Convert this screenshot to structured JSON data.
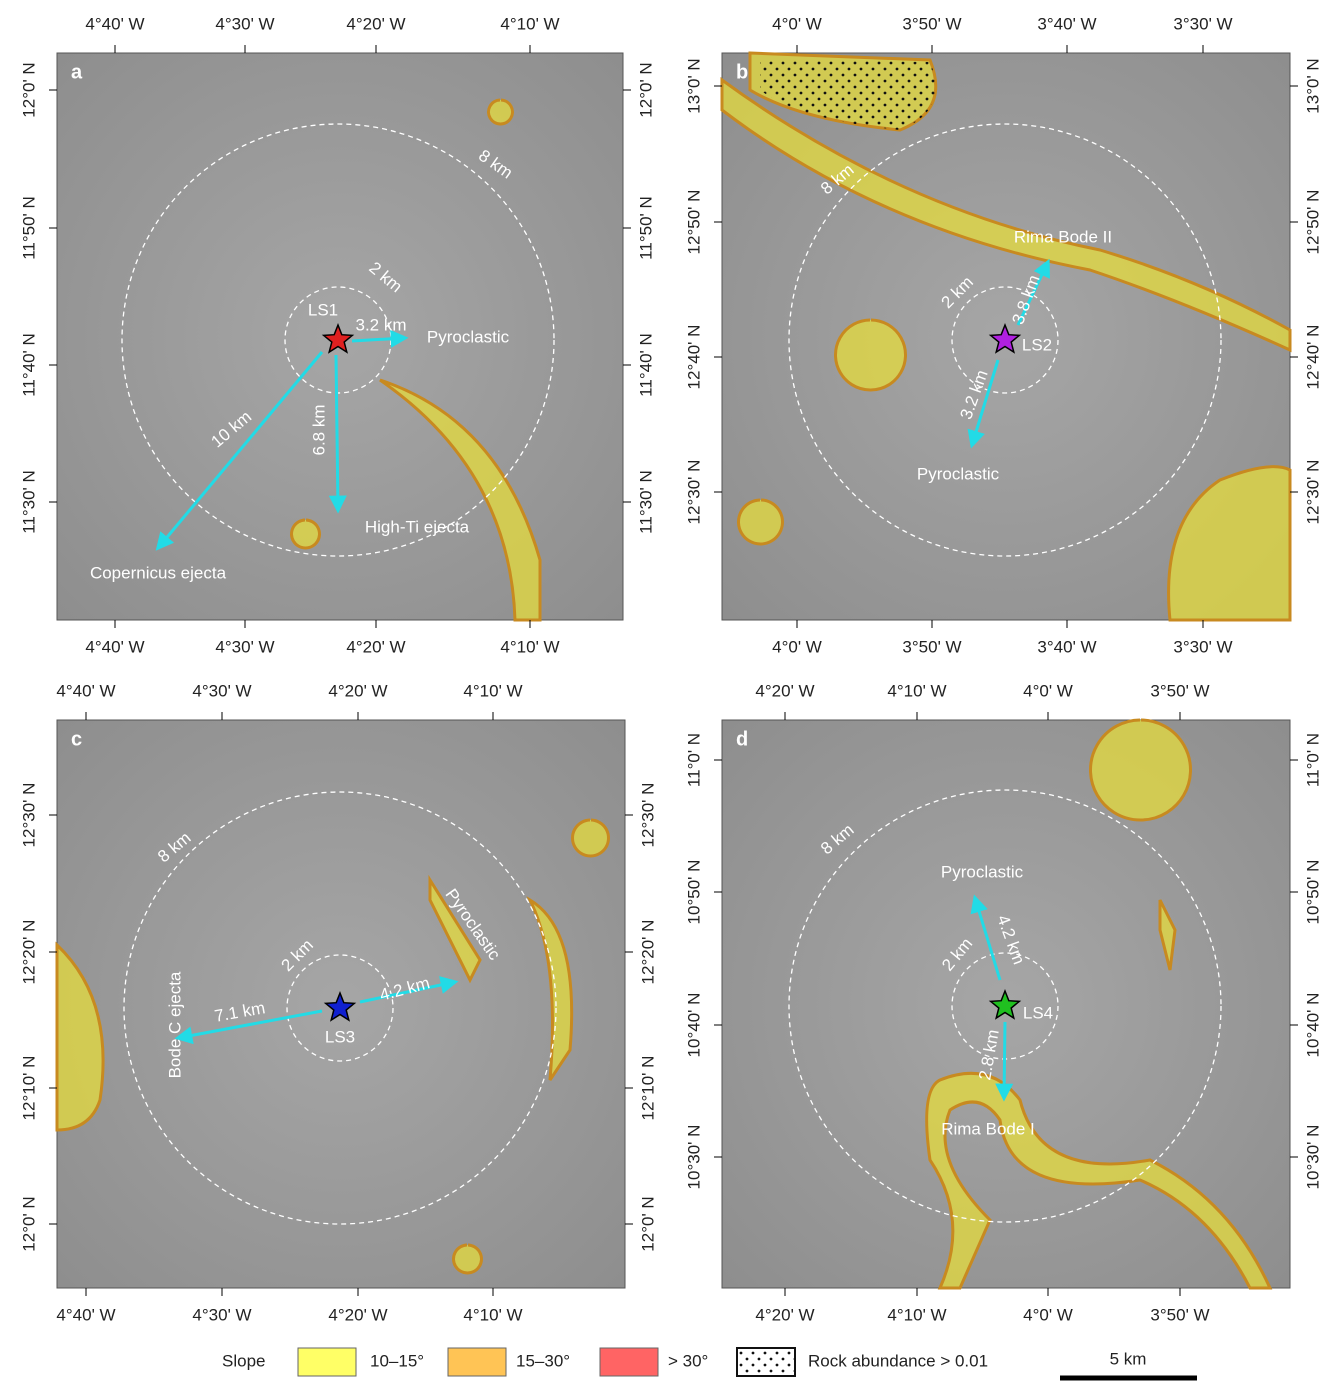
{
  "panels": [
    {
      "label": "a",
      "top_ticks": [
        "4°40' W",
        "4°30' W",
        "4°20' W",
        "4°10' W"
      ],
      "bottom_ticks": [
        "4°40' W",
        "4°30' W",
        "4°20' W",
        "4°10' W"
      ],
      "left_ticks": [
        "12°0' N",
        "11°50' N",
        "11°40' N",
        "11°30' N"
      ],
      "right_ticks": [
        "12°0' N",
        "11°50' N",
        "11°40' N",
        "11°30' N"
      ],
      "annotations": [
        "8 km",
        "2 km",
        "LS1",
        "3.2 km",
        "Pyroclastic",
        "10 km",
        "6.8 km",
        "High-Ti ejecta",
        "Copernicus ejecta"
      ]
    },
    {
      "label": "b",
      "top_ticks": [
        "4°0' W",
        "3°50' W",
        "3°40' W",
        "3°30' W"
      ],
      "bottom_ticks": [
        "4°0' W",
        "3°50' W",
        "3°40' W",
        "3°30' W"
      ],
      "left_ticks": [
        "13°0' N",
        "12°50' N",
        "12°40' N",
        "12°30' N"
      ],
      "right_ticks": [
        "13°0' N",
        "12°50' N",
        "12°40' N",
        "12°30' N"
      ],
      "annotations": [
        "8 km",
        "Rima Bode II",
        "2 km",
        "3.8 km",
        "LS2",
        "3.2 km",
        "Pyroclastic"
      ]
    },
    {
      "label": "c",
      "top_ticks": [
        "4°40' W",
        "4°30' W",
        "4°20' W",
        "4°10' W"
      ],
      "bottom_ticks": [
        "4°40' W",
        "4°30' W",
        "4°20' W",
        "4°10' W"
      ],
      "left_ticks": [
        "12°30' N",
        "12°20' N",
        "12°10' N",
        "12°0' N"
      ],
      "right_ticks": [
        "12°30' N",
        "12°20' N",
        "12°10' N",
        "12°0' N"
      ],
      "annotations": [
        "8 km",
        "2 km",
        "Pyroclastic",
        "Bode C ejecta",
        "7.1 km",
        "4.2 km",
        "LS3"
      ]
    },
    {
      "label": "d",
      "top_ticks": [
        "4°20' W",
        "4°10' W",
        "4°0' W",
        "3°50' W"
      ],
      "bottom_ticks": [
        "4°20' W",
        "4°10' W",
        "4°0' W",
        "3°50' W"
      ],
      "left_ticks": [
        "11°0' N",
        "10°50' N",
        "10°40' N",
        "10°30' N"
      ],
      "right_ticks": [
        "11°0' N",
        "10°50' N",
        "10°40' N",
        "10°30' N"
      ],
      "annotations": [
        "8 km",
        "Pyroclastic",
        "2 km",
        "4.2 km",
        "LS4",
        "2.8 km",
        "Rima Bode I"
      ]
    }
  ],
  "legend": {
    "title": "Slope",
    "items": [
      "10–15°",
      "15–30°",
      "> 30°",
      "Rock abundance > 0.01"
    ]
  },
  "scale_bar": "5 km"
}
